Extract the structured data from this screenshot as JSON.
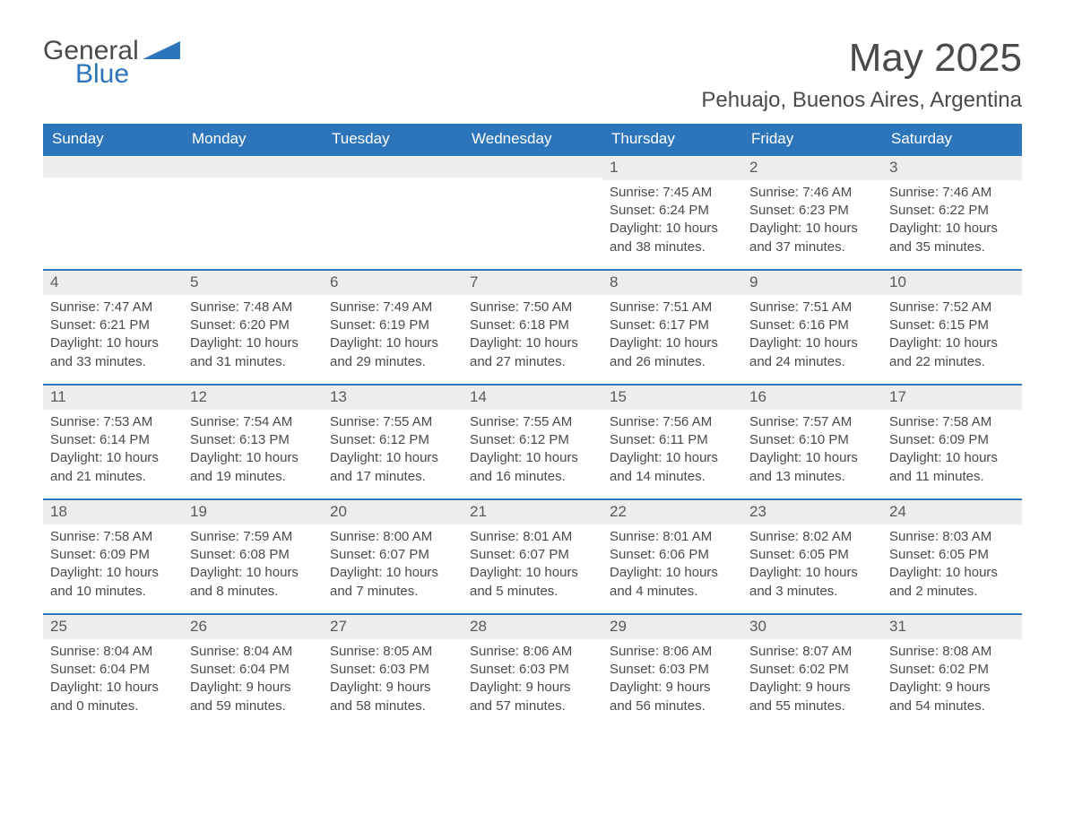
{
  "logo": {
    "text_general": "General",
    "text_blue": "Blue",
    "shape_color": "#2d75bb"
  },
  "header": {
    "month_title": "May 2025",
    "location": "Pehuajo, Buenos Aires, Argentina"
  },
  "styling": {
    "header_bg": "#2d75bb",
    "header_text": "#ffffff",
    "daynum_bg": "#ededed",
    "row_divider": "#2d75bb",
    "body_text": "#4a4a4a",
    "page_bg": "#ffffff",
    "title_fontsize": 44,
    "location_fontsize": 24,
    "weekday_fontsize": 17,
    "cell_fontsize": 15
  },
  "weekdays": [
    "Sunday",
    "Monday",
    "Tuesday",
    "Wednesday",
    "Thursday",
    "Friday",
    "Saturday"
  ],
  "weeks": [
    [
      null,
      null,
      null,
      null,
      {
        "n": "1",
        "sunrise": "Sunrise: 7:45 AM",
        "sunset": "Sunset: 6:24 PM",
        "daylight1": "Daylight: 10 hours",
        "daylight2": "and 38 minutes."
      },
      {
        "n": "2",
        "sunrise": "Sunrise: 7:46 AM",
        "sunset": "Sunset: 6:23 PM",
        "daylight1": "Daylight: 10 hours",
        "daylight2": "and 37 minutes."
      },
      {
        "n": "3",
        "sunrise": "Sunrise: 7:46 AM",
        "sunset": "Sunset: 6:22 PM",
        "daylight1": "Daylight: 10 hours",
        "daylight2": "and 35 minutes."
      }
    ],
    [
      {
        "n": "4",
        "sunrise": "Sunrise: 7:47 AM",
        "sunset": "Sunset: 6:21 PM",
        "daylight1": "Daylight: 10 hours",
        "daylight2": "and 33 minutes."
      },
      {
        "n": "5",
        "sunrise": "Sunrise: 7:48 AM",
        "sunset": "Sunset: 6:20 PM",
        "daylight1": "Daylight: 10 hours",
        "daylight2": "and 31 minutes."
      },
      {
        "n": "6",
        "sunrise": "Sunrise: 7:49 AM",
        "sunset": "Sunset: 6:19 PM",
        "daylight1": "Daylight: 10 hours",
        "daylight2": "and 29 minutes."
      },
      {
        "n": "7",
        "sunrise": "Sunrise: 7:50 AM",
        "sunset": "Sunset: 6:18 PM",
        "daylight1": "Daylight: 10 hours",
        "daylight2": "and 27 minutes."
      },
      {
        "n": "8",
        "sunrise": "Sunrise: 7:51 AM",
        "sunset": "Sunset: 6:17 PM",
        "daylight1": "Daylight: 10 hours",
        "daylight2": "and 26 minutes."
      },
      {
        "n": "9",
        "sunrise": "Sunrise: 7:51 AM",
        "sunset": "Sunset: 6:16 PM",
        "daylight1": "Daylight: 10 hours",
        "daylight2": "and 24 minutes."
      },
      {
        "n": "10",
        "sunrise": "Sunrise: 7:52 AM",
        "sunset": "Sunset: 6:15 PM",
        "daylight1": "Daylight: 10 hours",
        "daylight2": "and 22 minutes."
      }
    ],
    [
      {
        "n": "11",
        "sunrise": "Sunrise: 7:53 AM",
        "sunset": "Sunset: 6:14 PM",
        "daylight1": "Daylight: 10 hours",
        "daylight2": "and 21 minutes."
      },
      {
        "n": "12",
        "sunrise": "Sunrise: 7:54 AM",
        "sunset": "Sunset: 6:13 PM",
        "daylight1": "Daylight: 10 hours",
        "daylight2": "and 19 minutes."
      },
      {
        "n": "13",
        "sunrise": "Sunrise: 7:55 AM",
        "sunset": "Sunset: 6:12 PM",
        "daylight1": "Daylight: 10 hours",
        "daylight2": "and 17 minutes."
      },
      {
        "n": "14",
        "sunrise": "Sunrise: 7:55 AM",
        "sunset": "Sunset: 6:12 PM",
        "daylight1": "Daylight: 10 hours",
        "daylight2": "and 16 minutes."
      },
      {
        "n": "15",
        "sunrise": "Sunrise: 7:56 AM",
        "sunset": "Sunset: 6:11 PM",
        "daylight1": "Daylight: 10 hours",
        "daylight2": "and 14 minutes."
      },
      {
        "n": "16",
        "sunrise": "Sunrise: 7:57 AM",
        "sunset": "Sunset: 6:10 PM",
        "daylight1": "Daylight: 10 hours",
        "daylight2": "and 13 minutes."
      },
      {
        "n": "17",
        "sunrise": "Sunrise: 7:58 AM",
        "sunset": "Sunset: 6:09 PM",
        "daylight1": "Daylight: 10 hours",
        "daylight2": "and 11 minutes."
      }
    ],
    [
      {
        "n": "18",
        "sunrise": "Sunrise: 7:58 AM",
        "sunset": "Sunset: 6:09 PM",
        "daylight1": "Daylight: 10 hours",
        "daylight2": "and 10 minutes."
      },
      {
        "n": "19",
        "sunrise": "Sunrise: 7:59 AM",
        "sunset": "Sunset: 6:08 PM",
        "daylight1": "Daylight: 10 hours",
        "daylight2": "and 8 minutes."
      },
      {
        "n": "20",
        "sunrise": "Sunrise: 8:00 AM",
        "sunset": "Sunset: 6:07 PM",
        "daylight1": "Daylight: 10 hours",
        "daylight2": "and 7 minutes."
      },
      {
        "n": "21",
        "sunrise": "Sunrise: 8:01 AM",
        "sunset": "Sunset: 6:07 PM",
        "daylight1": "Daylight: 10 hours",
        "daylight2": "and 5 minutes."
      },
      {
        "n": "22",
        "sunrise": "Sunrise: 8:01 AM",
        "sunset": "Sunset: 6:06 PM",
        "daylight1": "Daylight: 10 hours",
        "daylight2": "and 4 minutes."
      },
      {
        "n": "23",
        "sunrise": "Sunrise: 8:02 AM",
        "sunset": "Sunset: 6:05 PM",
        "daylight1": "Daylight: 10 hours",
        "daylight2": "and 3 minutes."
      },
      {
        "n": "24",
        "sunrise": "Sunrise: 8:03 AM",
        "sunset": "Sunset: 6:05 PM",
        "daylight1": "Daylight: 10 hours",
        "daylight2": "and 2 minutes."
      }
    ],
    [
      {
        "n": "25",
        "sunrise": "Sunrise: 8:04 AM",
        "sunset": "Sunset: 6:04 PM",
        "daylight1": "Daylight: 10 hours",
        "daylight2": "and 0 minutes."
      },
      {
        "n": "26",
        "sunrise": "Sunrise: 8:04 AM",
        "sunset": "Sunset: 6:04 PM",
        "daylight1": "Daylight: 9 hours",
        "daylight2": "and 59 minutes."
      },
      {
        "n": "27",
        "sunrise": "Sunrise: 8:05 AM",
        "sunset": "Sunset: 6:03 PM",
        "daylight1": "Daylight: 9 hours",
        "daylight2": "and 58 minutes."
      },
      {
        "n": "28",
        "sunrise": "Sunrise: 8:06 AM",
        "sunset": "Sunset: 6:03 PM",
        "daylight1": "Daylight: 9 hours",
        "daylight2": "and 57 minutes."
      },
      {
        "n": "29",
        "sunrise": "Sunrise: 8:06 AM",
        "sunset": "Sunset: 6:03 PM",
        "daylight1": "Daylight: 9 hours",
        "daylight2": "and 56 minutes."
      },
      {
        "n": "30",
        "sunrise": "Sunrise: 8:07 AM",
        "sunset": "Sunset: 6:02 PM",
        "daylight1": "Daylight: 9 hours",
        "daylight2": "and 55 minutes."
      },
      {
        "n": "31",
        "sunrise": "Sunrise: 8:08 AM",
        "sunset": "Sunset: 6:02 PM",
        "daylight1": "Daylight: 9 hours",
        "daylight2": "and 54 minutes."
      }
    ]
  ]
}
